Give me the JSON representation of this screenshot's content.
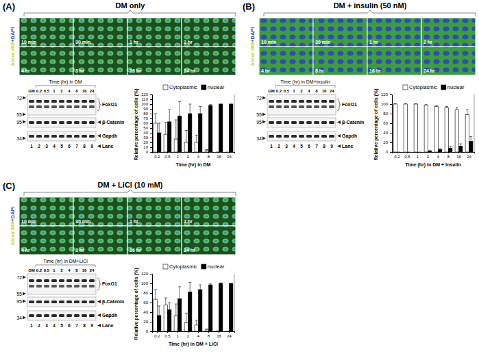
{
  "panels": [
    {
      "label": "(A)",
      "title": "DM only",
      "stain_label": [
        "Alexa 488",
        "+DAPI"
      ],
      "time_labels": [
        "10 min",
        "30 min",
        "1 hr",
        "2 hr",
        "4 hr",
        "8 hr",
        "16 hr",
        "24 hr"
      ],
      "blot": {
        "title": "Time (hr) in DM",
        "lanes": [
          "GM",
          "0.2",
          "0.5",
          "1",
          "2",
          "4",
          "8",
          "16",
          "24"
        ],
        "markers": [
          72,
          55,
          95,
          34
        ],
        "bands": [
          "FoxO1",
          "β-Catenin",
          "Gapdh"
        ],
        "lane_label": "Lane",
        "lane_numbers": [
          1,
          2,
          3,
          4,
          5,
          6,
          7,
          8,
          9
        ]
      }
    },
    {
      "label": "(B)",
      "title": "DM + insulin (50 nM)",
      "stain_label": [
        "Alexa 488",
        "+DAPI"
      ],
      "time_labels": [
        "10 min",
        "30 min",
        "1 hr",
        "2 hr",
        "4 hr",
        "8 hr",
        "16 hr",
        "24 hr"
      ],
      "blot": {
        "title": "Time (hr) in DM+insulin",
        "lanes": [
          "GM",
          "0.2",
          "0.5",
          "1",
          "2",
          "4",
          "8",
          "16",
          "24"
        ],
        "markers": [
          72,
          55,
          95,
          34
        ],
        "bands": [
          "FoxO1",
          "β-Catenin",
          "Gapdh"
        ],
        "lane_label": "Lane",
        "lane_numbers": [
          1,
          2,
          3,
          4,
          5,
          6,
          7,
          8,
          9
        ]
      }
    },
    {
      "label": "(C)",
      "title": "DM + LiCl (10 mM)",
      "stain_label": [
        "Alexa 488",
        "+DAPI"
      ],
      "time_labels": [
        "10 min",
        "30 min",
        "1 hr",
        "2 hr",
        "4 hr",
        "8 hr",
        "16 hr",
        "24 hr"
      ],
      "blot": {
        "title": "Time (hr) in DM+LiCl",
        "lanes": [
          "GM",
          "0.2",
          "0.5",
          "1",
          "2",
          "4",
          "8",
          "16",
          "24"
        ],
        "markers": [
          72,
          55,
          95,
          34
        ],
        "bands": [
          "FoxO1",
          "β-Catenin",
          "Gapdh"
        ],
        "lane_label": "Lane",
        "lane_numbers": [
          1,
          2,
          3,
          4,
          5,
          6,
          7,
          8,
          9
        ]
      }
    }
  ],
  "chart_data": [
    {
      "type": "bar",
      "x_label": "Time (hr) in DM",
      "y_label": "Relative percentage of cells (%)",
      "categories": [
        "0.2",
        "0.5",
        "1",
        "2",
        "4",
        "8",
        "16",
        "24"
      ],
      "series": [
        {
          "name": "Cytoplasmic",
          "color": "#ffffff",
          "values": [
            60,
            37,
            27,
            20,
            20,
            3,
            0,
            0
          ],
          "errors": [
            20,
            25,
            40,
            25,
            15,
            2,
            0,
            0
          ]
        },
        {
          "name": "nuclear",
          "color": "#000000",
          "values": [
            40,
            63,
            75,
            80,
            80,
            97,
            100,
            100
          ],
          "errors": [
            20,
            25,
            30,
            20,
            15,
            2,
            0,
            0
          ]
        }
      ],
      "ylim": [
        0,
        120
      ],
      "yticks": [
        0,
        10,
        20,
        30,
        40,
        50,
        60,
        70,
        80,
        90,
        100,
        110,
        120
      ],
      "legend": "top",
      "grid": false
    },
    {
      "type": "bar",
      "x_label": "Time (hr) in DM + Insulin",
      "y_label": "Relative percentage of cells (%)",
      "categories": [
        "0.2",
        "0.5",
        "1",
        "2",
        "4",
        "8",
        "16",
        "24"
      ],
      "series": [
        {
          "name": "Cytoplasmic",
          "color": "#ffffff",
          "values": [
            100,
            100,
            100,
            98,
            95,
            92,
            88,
            78
          ],
          "errors": [
            1,
            1,
            1,
            1,
            2,
            3,
            5,
            10
          ]
        },
        {
          "name": "nuclear",
          "color": "#000000",
          "values": [
            0,
            0,
            0,
            2,
            5,
            8,
            12,
            22
          ],
          "errors": [
            0,
            0,
            0,
            1,
            2,
            3,
            5,
            10
          ]
        }
      ],
      "ylim": [
        0,
        120
      ],
      "yticks": [
        0,
        20,
        40,
        60,
        80,
        100,
        120
      ],
      "legend": "top",
      "grid": false
    },
    {
      "type": "bar",
      "x_label": "Time (hr) in DM + LiCl",
      "y_label": "Relative percentage of cells (%)",
      "categories": [
        "0.2",
        "0.5",
        "1",
        "2",
        "4",
        "8",
        "16",
        "24"
      ],
      "series": [
        {
          "name": "Cytoplasmic",
          "color": "#ffffff",
          "values": [
            67,
            55,
            32,
            18,
            13,
            3,
            0,
            0
          ],
          "errors": [
            20,
            15,
            25,
            20,
            10,
            2,
            1,
            0
          ]
        },
        {
          "name": "nuclear",
          "color": "#000000",
          "values": [
            33,
            45,
            68,
            82,
            87,
            97,
            100,
            100
          ],
          "errors": [
            20,
            15,
            25,
            20,
            10,
            2,
            1,
            0
          ]
        }
      ],
      "ylim": [
        0,
        120
      ],
      "yticks": [
        0,
        20,
        40,
        60,
        80,
        100,
        120
      ],
      "legend": "top",
      "grid": false
    }
  ]
}
